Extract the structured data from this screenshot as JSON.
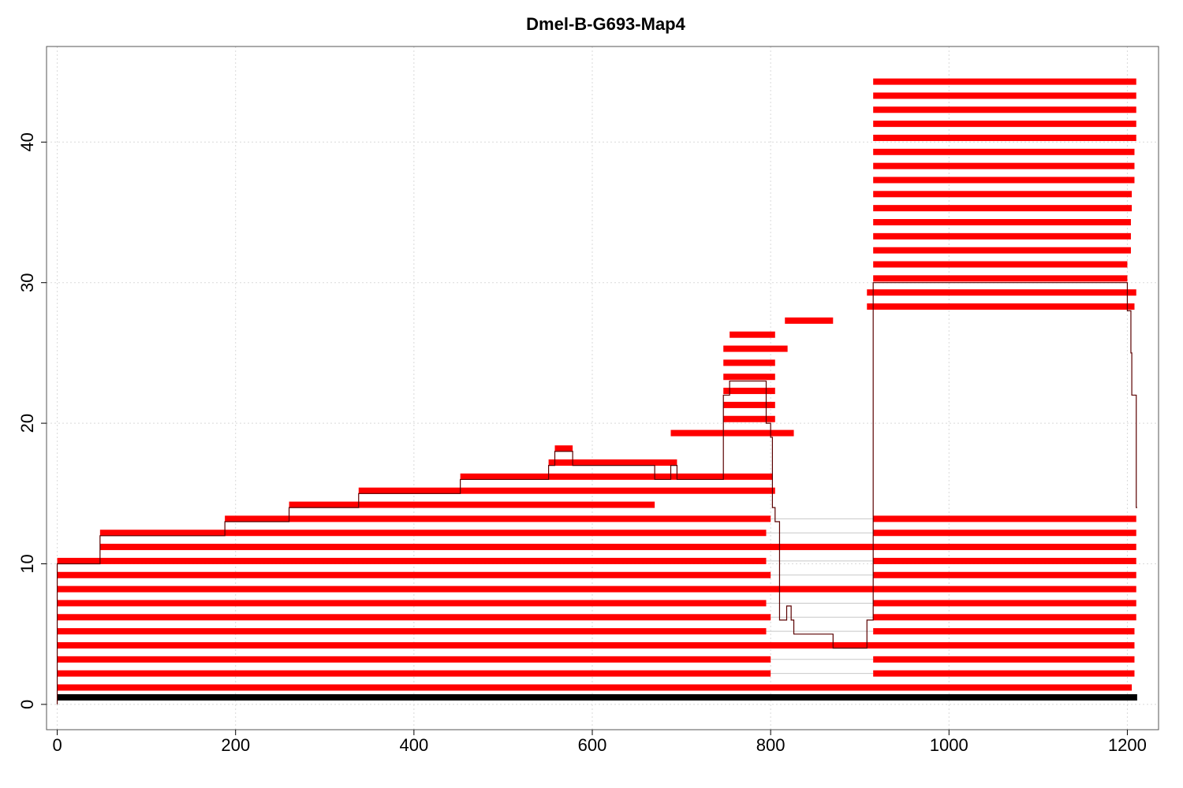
{
  "chart_data": {
    "type": "bar",
    "title": "Dmel-B-G693-Map4",
    "xlabel": "",
    "ylabel": "",
    "xlim": [
      -12,
      1235
    ],
    "ylim": [
      -1.8,
      46.8
    ],
    "x_ticks": [
      0,
      200,
      400,
      600,
      800,
      1000,
      1200
    ],
    "y_ticks": [
      0,
      10,
      20,
      30,
      40
    ],
    "grid": true,
    "colors": {
      "reads": "#ff0000",
      "reference": "#000000",
      "coverage": "#5a0000",
      "connector": "#c8c8c8"
    },
    "reference": {
      "start": 0,
      "end": 1211,
      "y": 0.5
    },
    "reads": [
      {
        "y": 1.2,
        "segments": [
          [
            0,
            1205
          ]
        ]
      },
      {
        "y": 2.2,
        "segments": [
          [
            0,
            800
          ],
          [
            915,
            1208
          ]
        ]
      },
      {
        "y": 3.2,
        "segments": [
          [
            0,
            800
          ],
          [
            915,
            1208
          ]
        ]
      },
      {
        "y": 4.2,
        "segments": [
          [
            0,
            1208
          ]
        ]
      },
      {
        "y": 5.2,
        "segments": [
          [
            0,
            795
          ],
          [
            915,
            1208
          ]
        ]
      },
      {
        "y": 6.2,
        "segments": [
          [
            0,
            800
          ],
          [
            915,
            1210
          ]
        ]
      },
      {
        "y": 7.2,
        "segments": [
          [
            0,
            795
          ],
          [
            915,
            1210
          ]
        ]
      },
      {
        "y": 8.2,
        "segments": [
          [
            0,
            1210
          ]
        ]
      },
      {
        "y": 9.2,
        "segments": [
          [
            0,
            800
          ],
          [
            915,
            1210
          ]
        ]
      },
      {
        "y": 10.2,
        "segments": [
          [
            0,
            795
          ],
          [
            915,
            1210
          ]
        ]
      },
      {
        "y": 11.2,
        "segments": [
          [
            48,
            1210
          ]
        ]
      },
      {
        "y": 12.2,
        "segments": [
          [
            48,
            795
          ],
          [
            915,
            1210
          ]
        ]
      },
      {
        "y": 13.2,
        "segments": [
          [
            188,
            800
          ],
          [
            915,
            1210
          ]
        ]
      },
      {
        "y": 14.2,
        "segments": [
          [
            260,
            670
          ]
        ]
      },
      {
        "y": 15.2,
        "segments": [
          [
            338,
            805
          ]
        ]
      },
      {
        "y": 16.2,
        "segments": [
          [
            452,
            802
          ]
        ]
      },
      {
        "y": 17.2,
        "segments": [
          [
            551,
            695
          ]
        ]
      },
      {
        "y": 18.2,
        "segments": [
          [
            558,
            578
          ]
        ]
      },
      {
        "y": 19.3,
        "segments": [
          [
            688,
            826
          ]
        ]
      },
      {
        "y": 20.3,
        "segments": [
          [
            747,
            805
          ]
        ]
      },
      {
        "y": 21.3,
        "segments": [
          [
            747,
            805
          ]
        ]
      },
      {
        "y": 22.3,
        "segments": [
          [
            747,
            805
          ]
        ]
      },
      {
        "y": 23.3,
        "segments": [
          [
            747,
            805
          ]
        ]
      },
      {
        "y": 24.3,
        "segments": [
          [
            747,
            805
          ]
        ]
      },
      {
        "y": 25.3,
        "segments": [
          [
            747,
            819
          ]
        ]
      },
      {
        "y": 26.3,
        "segments": [
          [
            754,
            805
          ]
        ]
      },
      {
        "y": 27.3,
        "segments": [
          [
            816,
            870
          ]
        ]
      },
      {
        "y": 28.3,
        "segments": [
          [
            908,
            1208
          ]
        ]
      },
      {
        "y": 29.3,
        "segments": [
          [
            908,
            1210
          ]
        ]
      },
      {
        "y": 30.3,
        "segments": [
          [
            915,
            1200
          ]
        ]
      },
      {
        "y": 31.3,
        "segments": [
          [
            915,
            1200
          ]
        ]
      },
      {
        "y": 32.3,
        "segments": [
          [
            915,
            1204
          ]
        ]
      },
      {
        "y": 33.3,
        "segments": [
          [
            915,
            1204
          ]
        ]
      },
      {
        "y": 34.3,
        "segments": [
          [
            915,
            1204
          ]
        ]
      },
      {
        "y": 35.3,
        "segments": [
          [
            915,
            1205
          ]
        ]
      },
      {
        "y": 36.3,
        "segments": [
          [
            915,
            1205
          ]
        ]
      },
      {
        "y": 37.3,
        "segments": [
          [
            915,
            1208
          ]
        ]
      },
      {
        "y": 38.3,
        "segments": [
          [
            915,
            1208
          ]
        ]
      },
      {
        "y": 39.3,
        "segments": [
          [
            915,
            1208
          ]
        ]
      },
      {
        "y": 40.3,
        "segments": [
          [
            915,
            1210
          ]
        ]
      },
      {
        "y": 41.3,
        "segments": [
          [
            915,
            1210
          ]
        ]
      },
      {
        "y": 42.3,
        "segments": [
          [
            915,
            1210
          ]
        ]
      },
      {
        "y": 43.3,
        "segments": [
          [
            915,
            1210
          ]
        ]
      },
      {
        "y": 44.3,
        "segments": [
          [
            915,
            1210
          ]
        ]
      }
    ],
    "coverage": {
      "x": [
        0,
        0,
        48,
        48,
        188,
        188,
        260,
        260,
        338,
        338,
        452,
        452,
        551,
        551,
        558,
        558,
        578,
        578,
        670,
        670,
        688,
        688,
        695,
        695,
        747,
        747,
        754,
        754,
        795,
        795,
        800,
        800,
        802,
        802,
        805,
        805,
        810,
        810,
        818,
        818,
        823,
        823,
        826,
        826,
        870,
        870,
        908,
        908,
        915,
        915,
        1200,
        1200,
        1204,
        1204,
        1205,
        1205,
        1208,
        1208,
        1210,
        1210,
        1211
      ],
      "y": [
        0,
        10,
        10,
        12,
        12,
        13,
        13,
        14,
        14,
        15,
        15,
        16,
        16,
        17,
        17,
        18,
        18,
        17,
        17,
        16,
        16,
        17,
        17,
        16,
        16,
        22,
        22,
        23,
        23,
        20,
        20,
        19,
        19,
        14,
        14,
        13,
        13,
        6,
        6,
        7,
        7,
        6,
        6,
        5,
        5,
        4,
        4,
        6,
        6,
        30,
        30,
        28,
        28,
        25,
        25,
        22,
        22,
        22,
        22,
        14,
        14
      ]
    }
  }
}
